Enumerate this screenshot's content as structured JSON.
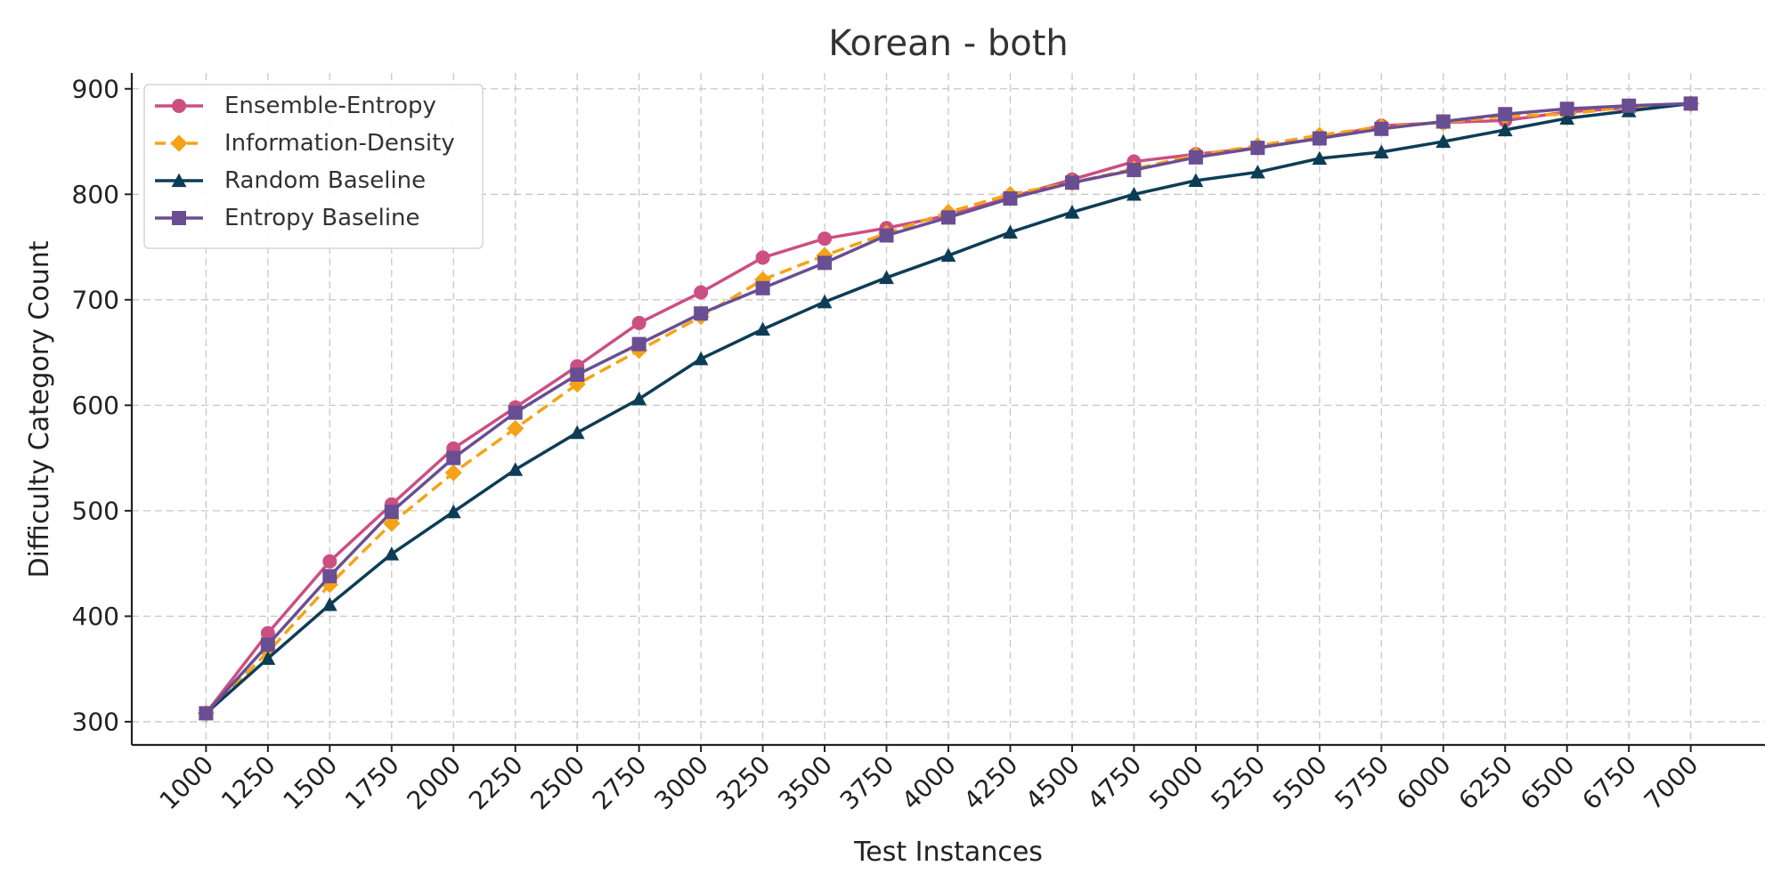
{
  "chart_data": {
    "type": "line",
    "title": "Korean - both",
    "xlabel": "Test Instances",
    "ylabel": "Difficulty Category Count",
    "x": [
      1000,
      1250,
      1500,
      1750,
      2000,
      2250,
      2500,
      2750,
      3000,
      3250,
      3500,
      3750,
      4000,
      4250,
      4500,
      4750,
      5000,
      5250,
      5500,
      5750,
      6000,
      6250,
      6500,
      6750,
      7000
    ],
    "x_tick_labels": [
      "1000",
      "1250",
      "1500",
      "1750",
      "2000",
      "2250",
      "2500",
      "2750",
      "3000",
      "3250",
      "3500",
      "3750",
      "4000",
      "4250",
      "4500",
      "4750",
      "5000",
      "5250",
      "5500",
      "5750",
      "6000",
      "6250",
      "6500",
      "6750",
      "7000"
    ],
    "xlim": [
      700,
      7300
    ],
    "ylim": [
      278,
      915
    ],
    "y_ticks": [
      300,
      400,
      500,
      600,
      700,
      800,
      900
    ],
    "y_tick_labels": [
      "300",
      "400",
      "500",
      "600",
      "700",
      "800",
      "900"
    ],
    "grid": true,
    "legend_position": "top-left",
    "series": [
      {
        "name": "Ensemble-Entropy",
        "color": "#cc4f82",
        "marker": "circle",
        "line_style": "solid",
        "values": [
          308,
          384,
          452,
          506,
          559,
          598,
          637,
          678,
          707,
          740,
          758,
          768,
          780,
          797,
          814,
          831,
          838,
          844,
          853,
          865,
          868,
          870,
          878,
          882,
          886
        ]
      },
      {
        "name": "Information-Density",
        "color": "#f5a316",
        "marker": "diamond",
        "line_style": "dashed",
        "values": [
          308,
          366,
          430,
          488,
          536,
          578,
          620,
          652,
          684,
          719,
          742,
          763,
          783,
          800,
          811,
          824,
          837,
          846,
          856,
          864,
          868,
          874,
          876,
          883,
          886
        ]
      },
      {
        "name": "Random Baseline",
        "color": "#0d3d56",
        "marker": "triangle",
        "line_style": "solid",
        "values": [
          308,
          360,
          411,
          459,
          499,
          539,
          574,
          606,
          644,
          672,
          698,
          721,
          742,
          764,
          783,
          800,
          813,
          821,
          834,
          840,
          850,
          861,
          872,
          879,
          886
        ]
      },
      {
        "name": "Entropy Baseline",
        "color": "#6a4e93",
        "marker": "square",
        "line_style": "solid",
        "values": [
          308,
          373,
          438,
          499,
          550,
          593,
          629,
          658,
          687,
          711,
          735,
          761,
          778,
          796,
          811,
          823,
          835,
          844,
          853,
          862,
          869,
          876,
          881,
          884,
          886
        ]
      }
    ]
  }
}
